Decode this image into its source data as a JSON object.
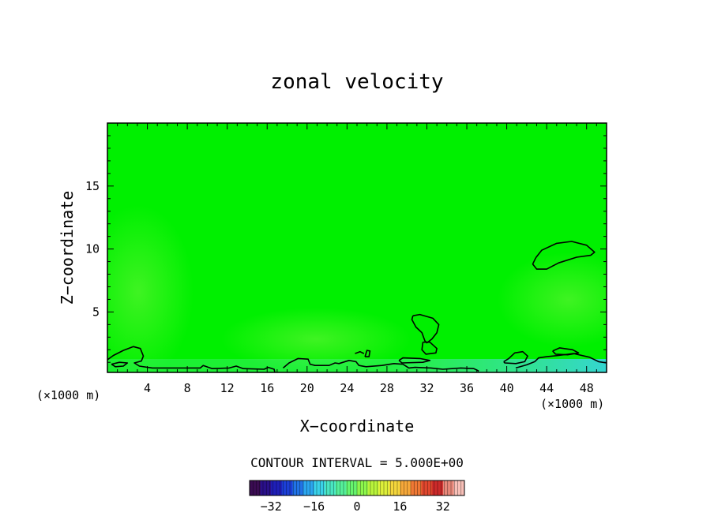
{
  "chart_data": {
    "type": "heatmap",
    "title": "zonal velocity",
    "xlabel": "X−coordinate",
    "ylabel": "Z−coordinate",
    "x_unit_left": "(×1000 m)",
    "x_unit_right": "(×1000 m)",
    "xlim": [
      0,
      50
    ],
    "ylim": [
      0.2,
      20
    ],
    "xticks": [
      4,
      8,
      12,
      16,
      20,
      24,
      28,
      32,
      36,
      40,
      44,
      48
    ],
    "yticks": [
      5,
      10,
      15
    ],
    "field_value_approx": 0,
    "contour_interval_text": "CONTOUR INTERVAL = 5.000E+00",
    "colorbar": {
      "min": -40,
      "max": 40,
      "ticks": [
        -32,
        -16,
        0,
        16,
        32
      ],
      "colors": [
        "#3a0c52",
        "#2a108a",
        "#1f1fb8",
        "#1c3fd6",
        "#2173e6",
        "#2ba6ef",
        "#3ad2e8",
        "#49e6c2",
        "#55f09a",
        "#66f56e",
        "#8cf74c",
        "#b9f53b",
        "#def03a",
        "#f4d63c",
        "#f6a83a",
        "#ef7834",
        "#e0472e",
        "#cc2a2a",
        "#e8887a",
        "#f8c0b8"
      ]
    },
    "contours": [
      {
        "name": "upper-right-cell",
        "points": [
          [
            42.9,
            9.3
          ],
          [
            43.5,
            9.9
          ],
          [
            45,
            10.45
          ],
          [
            46.5,
            10.6
          ],
          [
            48,
            10.3
          ],
          [
            48.8,
            9.75
          ],
          [
            48.4,
            9.5
          ],
          [
            47,
            9.35
          ],
          [
            45.2,
            8.9
          ],
          [
            44,
            8.4
          ],
          [
            43,
            8.4
          ],
          [
            42.6,
            8.8
          ],
          [
            42.9,
            9.3
          ]
        ]
      },
      {
        "name": "mid-cell",
        "points": [
          [
            30.6,
            4.7
          ],
          [
            31.3,
            4.8
          ],
          [
            32.6,
            4.5
          ],
          [
            33.2,
            4.0
          ],
          [
            33.0,
            3.35
          ],
          [
            32.5,
            2.85
          ],
          [
            32.0,
            2.55
          ],
          [
            31.8,
            2.7
          ],
          [
            31.5,
            3.35
          ],
          [
            30.9,
            3.8
          ],
          [
            30.5,
            4.4
          ],
          [
            30.6,
            4.7
          ]
        ]
      },
      {
        "name": "mid-cell-lower",
        "points": [
          [
            31.6,
            2.6
          ],
          [
            32.3,
            2.6
          ],
          [
            33.0,
            2.1
          ],
          [
            32.9,
            1.75
          ],
          [
            31.9,
            1.65
          ],
          [
            31.5,
            2.0
          ],
          [
            31.6,
            2.6
          ]
        ]
      },
      {
        "name": "left-boundary-line",
        "points": [
          [
            0,
            1.2
          ],
          [
            0.6,
            1.55
          ],
          [
            1.6,
            1.95
          ],
          [
            2.6,
            2.25
          ],
          [
            3.3,
            2.1
          ],
          [
            3.6,
            1.5
          ],
          [
            3.4,
            1.1
          ],
          [
            2.7,
            0.95
          ],
          [
            3.2,
            0.7
          ],
          [
            4.5,
            0.55
          ],
          [
            7,
            0.55
          ],
          [
            9.3,
            0.55
          ],
          [
            9.6,
            0.75
          ],
          [
            10.5,
            0.5
          ],
          [
            12.2,
            0.55
          ],
          [
            12.9,
            0.7
          ],
          [
            13.6,
            0.5
          ],
          [
            15.7,
            0.45
          ],
          [
            16.1,
            0.6
          ],
          [
            16.7,
            0.45
          ],
          [
            16.8,
            0.05
          ]
        ]
      },
      {
        "name": "left-small-loop",
        "points": [
          [
            0.4,
            0.85
          ],
          [
            1.2,
            1.0
          ],
          [
            2.0,
            0.95
          ],
          [
            1.6,
            0.7
          ],
          [
            0.8,
            0.65
          ],
          [
            0.4,
            0.85
          ]
        ]
      },
      {
        "name": "center-boundary-line",
        "points": [
          [
            17.6,
            0.55
          ],
          [
            18.2,
            0.95
          ],
          [
            19.1,
            1.3
          ],
          [
            20.1,
            1.25
          ],
          [
            20.3,
            0.85
          ],
          [
            20.8,
            0.75
          ],
          [
            22.2,
            0.75
          ],
          [
            22.8,
            0.95
          ],
          [
            23.2,
            0.9
          ],
          [
            24.2,
            1.15
          ],
          [
            24.9,
            1.05
          ],
          [
            25.2,
            0.75
          ],
          [
            25.9,
            0.65
          ],
          [
            27.5,
            0.75
          ],
          [
            28.7,
            0.9
          ],
          [
            29.6,
            0.85
          ],
          [
            30.2,
            0.55
          ],
          [
            30.8,
            0.6
          ],
          [
            32.4,
            0.55
          ],
          [
            33.6,
            0.45
          ],
          [
            35.4,
            0.55
          ],
          [
            36.7,
            0.5
          ],
          [
            37.2,
            0.3
          ]
        ]
      },
      {
        "name": "center-small-line",
        "points": [
          [
            29.2,
            1.15
          ],
          [
            29.6,
            1.35
          ],
          [
            31.3,
            1.3
          ],
          [
            32.3,
            1.15
          ],
          [
            31.6,
            1.0
          ],
          [
            29.5,
            0.95
          ],
          [
            29.2,
            1.15
          ]
        ]
      },
      {
        "name": "tiny-mark-a",
        "points": [
          [
            24.8,
            1.7
          ],
          [
            25.3,
            1.85
          ],
          [
            25.7,
            1.7
          ]
        ]
      },
      {
        "name": "tiny-loop-b",
        "points": [
          [
            25.8,
            1.45
          ],
          [
            26.0,
            1.95
          ],
          [
            26.3,
            1.9
          ],
          [
            26.2,
            1.45
          ],
          [
            25.8,
            1.45
          ]
        ]
      },
      {
        "name": "right-small-loop",
        "points": [
          [
            39.7,
            1.05
          ],
          [
            40.2,
            1.3
          ],
          [
            40.8,
            1.75
          ],
          [
            41.6,
            1.85
          ],
          [
            42.1,
            1.5
          ],
          [
            41.8,
            1.05
          ],
          [
            40.9,
            0.9
          ],
          [
            39.8,
            0.95
          ],
          [
            39.7,
            1.05
          ]
        ]
      },
      {
        "name": "right-boundary-line",
        "points": [
          [
            40.9,
            0.55
          ],
          [
            42.0,
            0.8
          ],
          [
            42.8,
            1.05
          ],
          [
            43.2,
            1.35
          ],
          [
            44.0,
            1.45
          ],
          [
            45.2,
            1.55
          ],
          [
            46.7,
            1.7
          ],
          [
            48.3,
            1.4
          ],
          [
            49.2,
            1.05
          ],
          [
            50,
            0.95
          ]
        ]
      },
      {
        "name": "right-small-bump",
        "points": [
          [
            44.6,
            1.9
          ],
          [
            45.3,
            2.15
          ],
          [
            46.6,
            2.0
          ],
          [
            47.2,
            1.75
          ],
          [
            46.1,
            1.6
          ],
          [
            44.9,
            1.65
          ],
          [
            44.6,
            1.9
          ]
        ]
      }
    ]
  }
}
